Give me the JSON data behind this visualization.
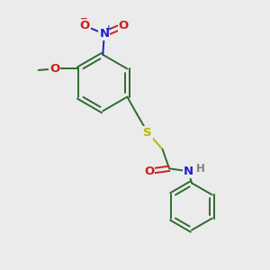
{
  "background_color": "#ebebeb",
  "bond_color": "#2d6b2d",
  "N_color": "#2020cc",
  "O_color": "#cc2020",
  "S_color": "#b8b800",
  "H_color": "#808080",
  "lw": 1.4,
  "fs": 8.5,
  "figsize": [
    3.0,
    3.0
  ],
  "dpi": 100,
  "xlim": [
    0,
    10
  ],
  "ylim": [
    0,
    10
  ]
}
